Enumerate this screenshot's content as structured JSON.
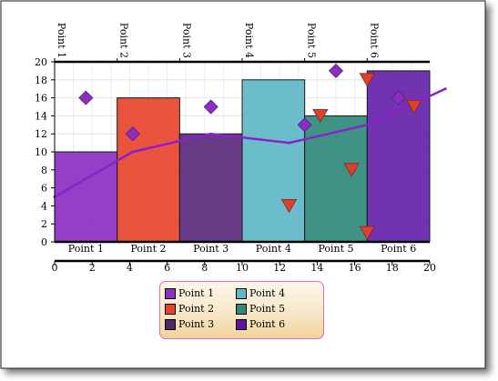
{
  "chart_data": {
    "type": "bar",
    "categories": [
      "Point 1",
      "Point 2",
      "Point 3",
      "Point 4",
      "Point 5",
      "Point 6"
    ],
    "bars": {
      "x_start": [
        0,
        4,
        8,
        12,
        16,
        20
      ],
      "x_end": [
        4,
        8,
        12,
        16,
        20,
        24
      ],
      "values": [
        10,
        16,
        12,
        18,
        14,
        19
      ],
      "colors": [
        "#8a2fc2",
        "#e8442c",
        "#5b2a7d",
        "#5fb7c8",
        "#2f8a7a",
        "#6622aa"
      ]
    },
    "line": {
      "color": "#8a22c8",
      "x": [
        0,
        5,
        10,
        15,
        20,
        25
      ],
      "values": [
        5,
        10,
        12,
        11,
        13,
        17
      ]
    },
    "diamonds": {
      "color": "#8a2fc2",
      "x": [
        2,
        5,
        10,
        16,
        18,
        22
      ],
      "values": [
        16,
        12,
        15,
        13,
        19,
        16
      ]
    },
    "triangles": {
      "color": "#d9422c",
      "x": [
        15,
        17,
        19,
        20,
        20,
        23
      ],
      "values": [
        4,
        14,
        8,
        18,
        1,
        15
      ]
    },
    "primary_axis": {
      "ylim": [
        0,
        20
      ],
      "yticks": [
        "0",
        "2",
        "4",
        "6",
        "8",
        "10",
        "12",
        "14",
        "16",
        "18",
        "20"
      ],
      "xlim": [
        0,
        24
      ],
      "category_labels": [
        "Point 1",
        "Point 2",
        "Point 3",
        "Point 4",
        "Point 5",
        "Point 6"
      ]
    },
    "secondary_axis": {
      "xlim": [
        0,
        20
      ],
      "ticks": [
        "0",
        "2",
        "4",
        "6",
        "8",
        "10",
        "12",
        "14",
        "16",
        "18",
        "20"
      ]
    },
    "top_axis": {
      "labels": [
        "Point 1",
        "Point 2",
        "Point 3",
        "Point 4",
        "Point 5",
        "Point 6"
      ]
    },
    "legend": {
      "placement": "bottom-center",
      "items": [
        {
          "label": "Point 1",
          "color": "#8a2fc2"
        },
        {
          "label": "Point 2",
          "color": "#e8442c"
        },
        {
          "label": "Point 3",
          "color": "#4a2a66"
        },
        {
          "label": "Point 4",
          "color": "#5fb7c8"
        },
        {
          "label": "Point 5",
          "color": "#2f8a7a"
        },
        {
          "label": "Point 6",
          "color": "#5a14a0"
        }
      ]
    },
    "grid": true
  }
}
